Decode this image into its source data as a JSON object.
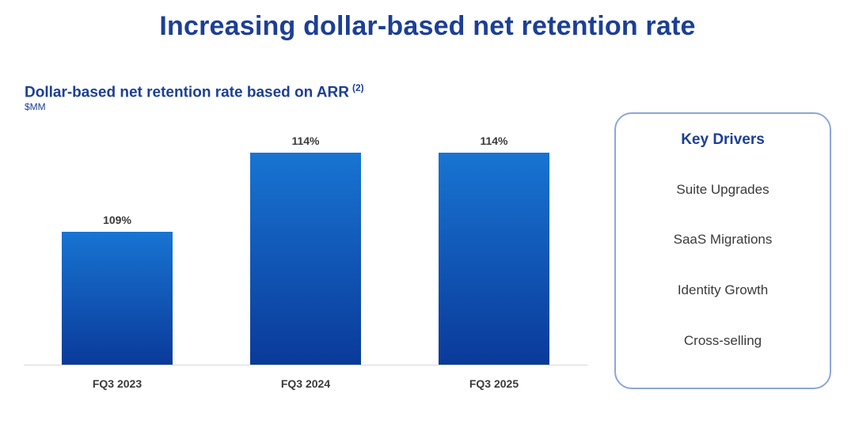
{
  "page": {
    "title": "Increasing dollar-based net retention rate"
  },
  "chart_data": {
    "type": "bar",
    "title": "Dollar-based net retention rate based on ARR",
    "title_footnote": "(2)",
    "unit": "$MM",
    "categories": [
      "FQ3 2023",
      "FQ3 2024",
      "FQ3 2025"
    ],
    "values": [
      109,
      114,
      114
    ],
    "data_labels": [
      "109%",
      "114%",
      "114%"
    ],
    "grid": false,
    "legend": "none",
    "colors": {
      "bar_top": "#1874d2",
      "bar_bottom": "#0a3a9a",
      "label": "#3a3a3a",
      "axis": "#d8d8d8"
    }
  },
  "key_drivers": {
    "heading": "Key Drivers",
    "items": [
      "Suite Upgrades",
      "SaaS Migrations",
      "Identity Growth",
      "Cross-selling"
    ]
  },
  "colors": {
    "brand": "#1c3f96",
    "box_border": "#8ea6d8"
  }
}
